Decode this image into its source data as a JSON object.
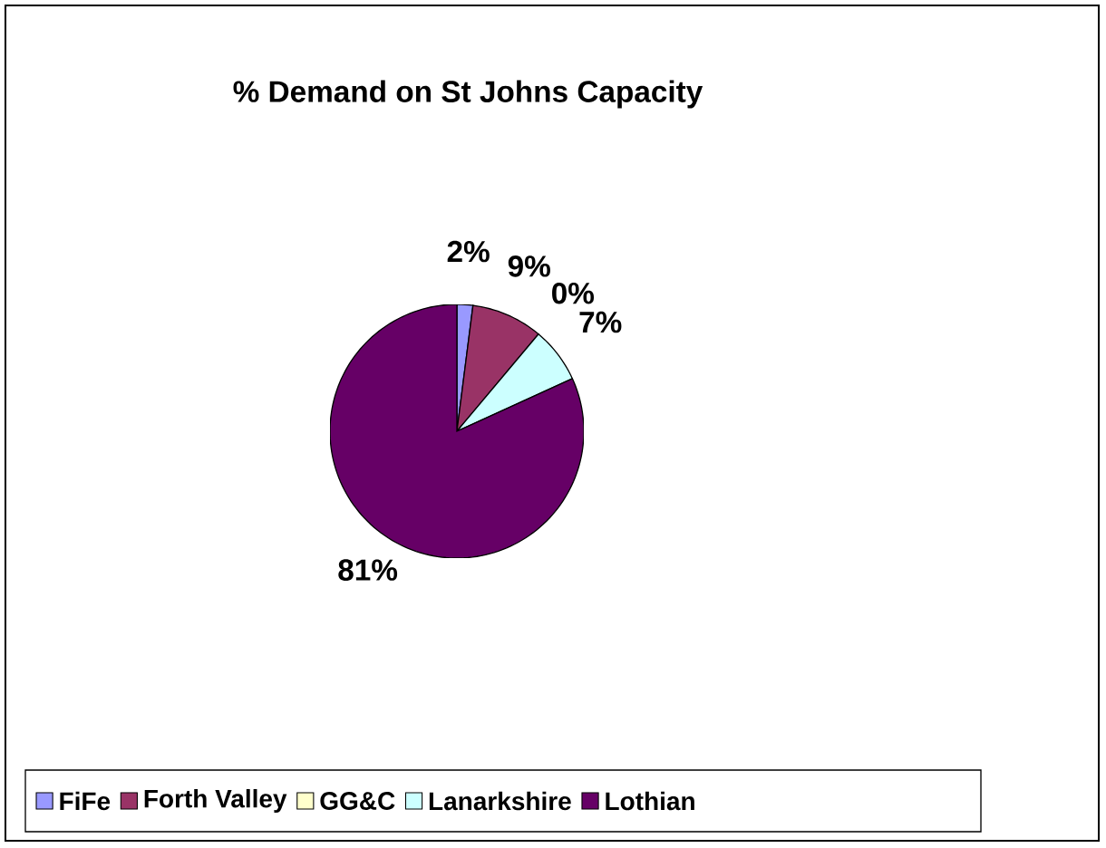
{
  "chart_data": {
    "type": "pie",
    "title": "% Demand on St Johns Capacity",
    "categories": [
      "FiFe",
      "Forth Valley",
      "GG&C",
      "Lanarkshire",
      "Lothian"
    ],
    "values": [
      2,
      9,
      0,
      7,
      81
    ],
    "value_labels": [
      "2%",
      "9%",
      "0%",
      "7%",
      "81%"
    ],
    "colors": [
      "#9999ff",
      "#993366",
      "#ffffcc",
      "#ccffff",
      "#660066"
    ],
    "legend": "bottom"
  }
}
